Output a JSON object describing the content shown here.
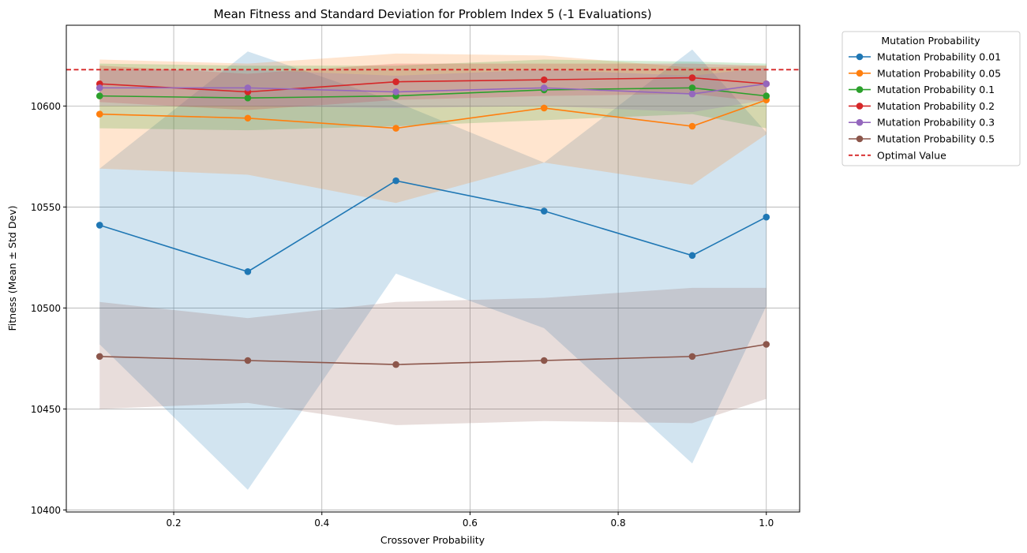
{
  "chart_data": {
    "type": "line",
    "title": "Mean Fitness and Standard Deviation for Problem Index 5 (-1 Evaluations)",
    "xlabel": "Crossover Probability",
    "ylabel": "Fitness (Mean ± Std Dev)",
    "x": [
      0.1,
      0.3,
      0.5,
      0.7,
      0.9,
      1.0
    ],
    "xlim": [
      0.055,
      1.045
    ],
    "ylim": [
      10399,
      10640
    ],
    "xticks": [
      0.2,
      0.4,
      0.6,
      0.8,
      1.0
    ],
    "xtick_labels": [
      "0.2",
      "0.4",
      "0.6",
      "0.8",
      "1.0"
    ],
    "yticks": [
      10400,
      10450,
      10500,
      10550,
      10600
    ],
    "ytick_labels": [
      "10400",
      "10450",
      "10500",
      "10550",
      "10600"
    ],
    "grid": true,
    "legend": {
      "title": "Mutation Probability",
      "placement": "outside-right"
    },
    "series": [
      {
        "name": "Mutation Probability 0.01",
        "color": "#1f77b4",
        "mean": [
          10541,
          10518,
          10563,
          10548,
          10526,
          10545
        ],
        "lower": [
          10482,
          10410,
          10517,
          10490,
          10423,
          10501
        ],
        "upper": [
          10569,
          10627,
          10602,
          10572,
          10628,
          10587
        ]
      },
      {
        "name": "Mutation Probability 0.05",
        "color": "#ff7f0e",
        "mean": [
          10596,
          10594,
          10589,
          10599,
          10590,
          10603
        ],
        "lower": [
          10569,
          10566,
          10552,
          10572,
          10561,
          10586
        ],
        "upper": [
          10623,
          10621,
          10626,
          10625,
          10619,
          10620
        ]
      },
      {
        "name": "Mutation Probability 0.1",
        "color": "#2ca02c",
        "mean": [
          10605,
          10604,
          10605,
          10608,
          10609,
          10605
        ],
        "lower": [
          10589,
          10588,
          10590,
          10593,
          10596,
          10589
        ],
        "upper": [
          10621,
          10620,
          10620,
          10623,
          10622,
          10621
        ]
      },
      {
        "name": "Mutation Probability 0.2",
        "color": "#d62728",
        "mean": [
          10611,
          10607,
          10612,
          10613,
          10614,
          10611
        ],
        "lower": [
          10602,
          10598,
          10603,
          10605,
          10606,
          10602
        ],
        "upper": [
          10620,
          10616,
          10621,
          10621,
          10621,
          10620
        ]
      },
      {
        "name": "Mutation Probability 0.3",
        "color": "#9467bd",
        "mean": [
          10609,
          10609,
          10607,
          10609,
          10606,
          10611
        ],
        "lower": [
          10600,
          10600,
          10599,
          10600,
          10597,
          10603
        ],
        "upper": [
          10618,
          10618,
          10615,
          10618,
          10615,
          10619
        ]
      },
      {
        "name": "Mutation Probability 0.5",
        "color": "#8c564b",
        "mean": [
          10476,
          10474,
          10472,
          10474,
          10476,
          10482
        ],
        "lower": [
          10450,
          10453,
          10442,
          10444,
          10443,
          10455
        ],
        "upper": [
          10503,
          10495,
          10503,
          10505,
          10510,
          10510
        ]
      }
    ],
    "reference_line": {
      "name": "Optimal Value",
      "y": 10618,
      "color": "#d62728",
      "style": "dashed"
    }
  }
}
